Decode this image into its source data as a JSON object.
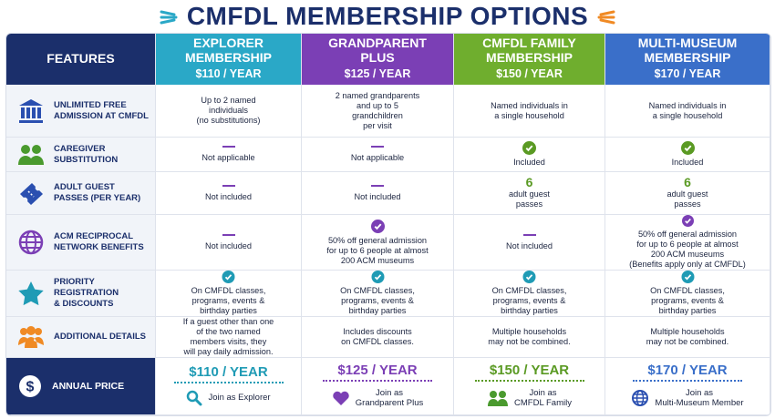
{
  "title": "CMFDL MEMBERSHIP OPTIONS",
  "table": {
    "header": {
      "features": "FEATURES",
      "columns": [
        {
          "name": [
            "EXPLORER",
            "MEMBERSHIP"
          ],
          "price": "$110 / YEAR"
        },
        {
          "name": [
            "GRANDPARENT",
            "PLUS"
          ],
          "price": "$125 / YEAR"
        },
        {
          "name": [
            "CMFDL FAMILY",
            "MEMBERSHIP"
          ],
          "price": "$150 / YEAR"
        },
        {
          "name": [
            "MULTI-MUSEUM",
            "MEMBERSHIP"
          ],
          "price": "$170 / YEAR"
        }
      ]
    },
    "rows": [
      {
        "feature": [
          "UNLIMITED FREE",
          "ADMISSION AT CMFDL"
        ],
        "cells": [
          {
            "lines": [
              "Up to 2 named",
              "individuals",
              "(no substitutions)"
            ]
          },
          {
            "lines": [
              "2 named grandparents",
              "and up to 5",
              "grandchildren",
              "per visit"
            ]
          },
          {
            "lines": [
              "Named individuals in",
              "a single household"
            ]
          },
          {
            "lines": [
              "Named individuals in",
              "a single household"
            ]
          }
        ]
      },
      {
        "feature": [
          "CAREGIVER",
          "SUBSTITUTION"
        ],
        "cells": [
          {
            "lines": [
              "Not applicable"
            ]
          },
          {
            "lines": [
              "Not applicable"
            ]
          },
          {
            "lines": [
              "Included"
            ]
          },
          {
            "lines": [
              "Included"
            ]
          }
        ]
      },
      {
        "feature": [
          "ADULT GUEST",
          "PASSES (PER YEAR)"
        ],
        "cells": [
          {
            "lines": [
              "Not included"
            ]
          },
          {
            "lines": [
              "Not included"
            ]
          },
          {
            "highlight": "6",
            "lines": [
              "adult guest",
              "passes"
            ]
          },
          {
            "highlight": "6",
            "lines": [
              "adult guest",
              "passes"
            ]
          }
        ]
      },
      {
        "feature": [
          "ACM RECIPROCAL",
          "NETWORK BENEFITS"
        ],
        "cells": [
          {
            "lines": [
              "Not included"
            ]
          },
          {
            "lines": [
              "50% off general admission",
              "for up to 6 people at almost",
              "200 ACM museums"
            ]
          },
          {
            "lines": [
              "Not included"
            ]
          },
          {
            "lines": [
              "50% off general admission",
              "for up to 6 people at almost",
              "200 ACM museums",
              "(Benefits apply only at CMFDL)"
            ]
          }
        ]
      },
      {
        "feature": [
          "PRIORITY REGISTRATION",
          "& DISCOUNTS"
        ],
        "cells": [
          {
            "lines": [
              "On CMFDL classes,",
              "programs, events &",
              "birthday parties"
            ]
          },
          {
            "lines": [
              "On CMFDL classes,",
              "programs, events &",
              "birthday parties"
            ]
          },
          {
            "lines": [
              "On CMFDL classes,",
              "programs, events &",
              "birthday parties"
            ]
          },
          {
            "lines": [
              "On CMFDL classes,",
              "programs, events &",
              "birthday parties"
            ]
          }
        ]
      },
      {
        "feature": [
          "ADDITIONAL DETAILS"
        ],
        "cells": [
          {
            "lines": [
              "If a guest other than one",
              "of the two named",
              "members visits, they",
              "will pay daily admission."
            ]
          },
          {
            "lines": [
              "Includes discounts",
              "on CMFDL classes."
            ]
          },
          {
            "lines": [
              "Multiple households",
              "may not be combined."
            ]
          },
          {
            "lines": [
              "Multiple households",
              "may not be combined."
            ]
          }
        ]
      }
    ],
    "price_row": {
      "label": "ANNUAL PRICE",
      "cells": [
        {
          "price": "$110 / YEAR",
          "join": [
            "Join as Explorer"
          ]
        },
        {
          "price": "$125 / YEAR",
          "join": [
            "Join as",
            "Grandparent Plus"
          ]
        },
        {
          "price": "$150 / YEAR",
          "join": [
            "Join as",
            "CMFDL Family"
          ]
        },
        {
          "price": "$170 / YEAR",
          "join": [
            "Join as",
            "Multi-Museum Member"
          ]
        }
      ]
    }
  }
}
